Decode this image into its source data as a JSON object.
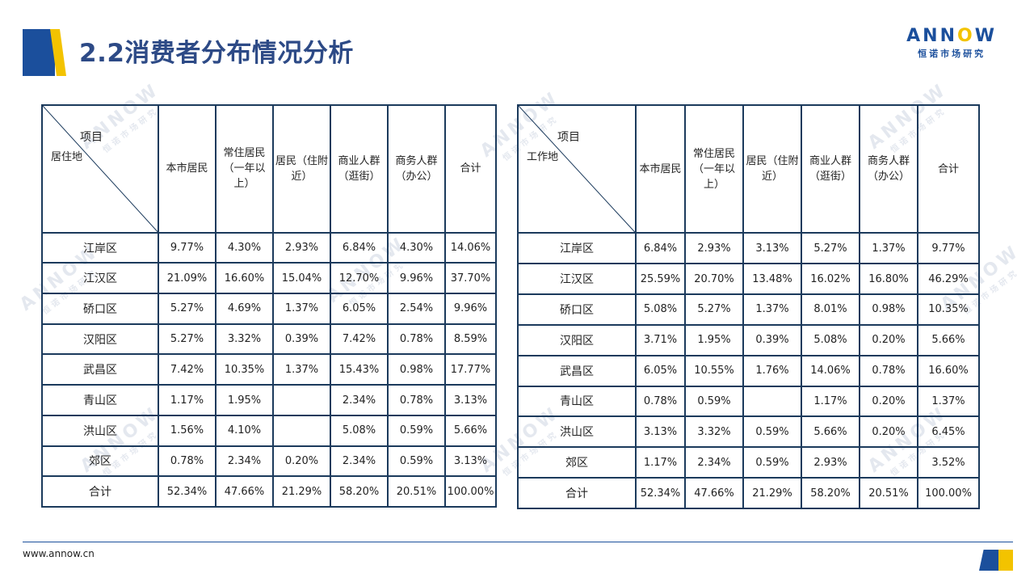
{
  "title": "2.2消费者分布情况分析",
  "logo": {
    "word_left": "ANN",
    "word_mid": "O",
    "word_right": "W",
    "sub": "恒诺市场研究"
  },
  "watermark": {
    "word": "ANNOW",
    "sub": "恒诺市场研究"
  },
  "footer": {
    "website": "www.annow.cn"
  },
  "colors": {
    "brand_blue": "#1b4f9c",
    "brand_yellow": "#f3c300",
    "title": "#2d4a86",
    "grid": "#1b3a5c"
  },
  "headers": [
    "本市居民",
    "常住居民（一年以上）",
    "居民（住附近）",
    "商业人群（逛街）",
    "商务人群（办公）",
    "合计"
  ],
  "left_table": {
    "corner_top": "项目",
    "corner_bottom": "居住地",
    "rows": [
      {
        "name": "江岸区",
        "cells": [
          "9.77%",
          "4.30%",
          "2.93%",
          "6.84%",
          "4.30%",
          "14.06%"
        ]
      },
      {
        "name": "江汉区",
        "cells": [
          "21.09%",
          "16.60%",
          "15.04%",
          "12.70%",
          "9.96%",
          "37.70%"
        ]
      },
      {
        "name": "硚口区",
        "cells": [
          "5.27%",
          "4.69%",
          "1.37%",
          "6.05%",
          "2.54%",
          "9.96%"
        ]
      },
      {
        "name": "汉阳区",
        "cells": [
          "5.27%",
          "3.32%",
          "0.39%",
          "7.42%",
          "0.78%",
          "8.59%"
        ]
      },
      {
        "name": "武昌区",
        "cells": [
          "7.42%",
          "10.35%",
          "1.37%",
          "15.43%",
          "0.98%",
          "17.77%"
        ]
      },
      {
        "name": "青山区",
        "cells": [
          "1.17%",
          "1.95%",
          "",
          "2.34%",
          "0.78%",
          "3.13%"
        ]
      },
      {
        "name": "洪山区",
        "cells": [
          "1.56%",
          "4.10%",
          "",
          "5.08%",
          "0.59%",
          "5.66%"
        ]
      },
      {
        "name": "郊区",
        "cells": [
          "0.78%",
          "2.34%",
          "0.20%",
          "2.34%",
          "0.59%",
          "3.13%"
        ]
      },
      {
        "name": "合计",
        "cells": [
          "52.34%",
          "47.66%",
          "21.29%",
          "58.20%",
          "20.51%",
          "100.00%"
        ]
      }
    ]
  },
  "right_table": {
    "corner_top": "项目",
    "corner_bottom": "工作地",
    "rows": [
      {
        "name": "江岸区",
        "cells": [
          "6.84%",
          "2.93%",
          "3.13%",
          "5.27%",
          "1.37%",
          "9.77%"
        ]
      },
      {
        "name": "江汉区",
        "cells": [
          "25.59%",
          "20.70%",
          "13.48%",
          "16.02%",
          "16.80%",
          "46.29%"
        ]
      },
      {
        "name": "硚口区",
        "cells": [
          "5.08%",
          "5.27%",
          "1.37%",
          "8.01%",
          "0.98%",
          "10.35%"
        ]
      },
      {
        "name": "汉阳区",
        "cells": [
          "3.71%",
          "1.95%",
          "0.39%",
          "5.08%",
          "0.20%",
          "5.66%"
        ]
      },
      {
        "name": "武昌区",
        "cells": [
          "6.05%",
          "10.55%",
          "1.76%",
          "14.06%",
          "0.78%",
          "16.60%"
        ]
      },
      {
        "name": "青山区",
        "cells": [
          "0.78%",
          "0.59%",
          "",
          "1.17%",
          "0.20%",
          "1.37%"
        ]
      },
      {
        "name": "洪山区",
        "cells": [
          "3.13%",
          "3.32%",
          "0.59%",
          "5.66%",
          "0.20%",
          "6.45%"
        ]
      },
      {
        "name": "郊区",
        "cells": [
          "1.17%",
          "2.34%",
          "0.59%",
          "2.93%",
          "",
          "3.52%"
        ]
      },
      {
        "name": "合计",
        "cells": [
          "52.34%",
          "47.66%",
          "21.29%",
          "58.20%",
          "20.51%",
          "100.00%"
        ]
      }
    ]
  }
}
